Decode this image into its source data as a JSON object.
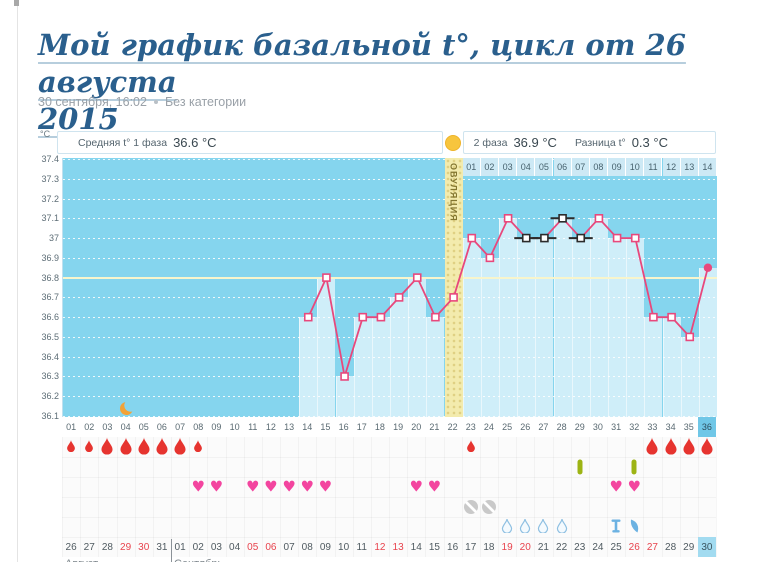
{
  "page": {
    "title_line1": "Мой график базальной t°, цикл от 26 августа",
    "title_line2": "2015",
    "meta_date": "30 сентября, 16:02",
    "meta_sep": "•",
    "meta_category": "Без категории"
  },
  "header": {
    "unit": "°C",
    "avg1_label": "Средняя t° 1 фаза",
    "avg1_value": "36.6 °C",
    "phase2_label": "2 фаза",
    "phase2_value": "36.9 °C",
    "diff_label": "Разница t°",
    "diff_value": "0.3 °C",
    "ovulation_label": "ОВУЛЯЦИЯ"
  },
  "chart_data": {
    "type": "line",
    "title": "Базальная температура по дням цикла",
    "ylabel": "°C",
    "ylim": [
      36.1,
      37.4
    ],
    "y_ticks": [
      "37.4",
      "37.3",
      "37.2",
      "37.1",
      "37",
      "36.9",
      "36.8",
      "36.7",
      "36.6",
      "36.5",
      "36.4",
      "36.3",
      "36.2",
      "36.1"
    ],
    "coverline": 36.8,
    "grid": true,
    "days": [
      "01",
      "02",
      "03",
      "04",
      "05",
      "06",
      "07",
      "08",
      "09",
      "10",
      "11",
      "12",
      "13",
      "14",
      "15",
      "16",
      "17",
      "18",
      "19",
      "20",
      "21",
      "22",
      "23",
      "24",
      "25",
      "26",
      "27",
      "28",
      "29",
      "30",
      "31",
      "32",
      "33",
      "34",
      "35",
      "36"
    ],
    "phase2_days": [
      "01",
      "02",
      "03",
      "04",
      "05",
      "06",
      "07",
      "08",
      "09",
      "10",
      "11",
      "12",
      "13",
      "14"
    ],
    "ovulation_day": 22,
    "moon_day": 4,
    "current_day": 36,
    "points": [
      {
        "day": 14,
        "t": 36.6
      },
      {
        "day": 15,
        "t": 36.8
      },
      {
        "day": 16,
        "t": 36.3
      },
      {
        "day": 17,
        "t": 36.6
      },
      {
        "day": 18,
        "t": 36.6
      },
      {
        "day": 19,
        "t": 36.7
      },
      {
        "day": 20,
        "t": 36.8
      },
      {
        "day": 21,
        "t": 36.6
      },
      {
        "day": 22,
        "t": 36.7
      },
      {
        "day": 23,
        "t": 37.0
      },
      {
        "day": 24,
        "t": 36.9
      },
      {
        "day": 25,
        "t": 37.1
      },
      {
        "day": 26,
        "t": 37.0,
        "marker": "black"
      },
      {
        "day": 27,
        "t": 37.0,
        "marker": "black"
      },
      {
        "day": 28,
        "t": 37.1,
        "marker": "black"
      },
      {
        "day": 29,
        "t": 37.0,
        "marker": "black"
      },
      {
        "day": 30,
        "t": 37.1
      },
      {
        "day": 31,
        "t": 37.0
      },
      {
        "day": 32,
        "t": 37.0
      },
      {
        "day": 33,
        "t": 36.6
      },
      {
        "day": 34,
        "t": 36.6
      },
      {
        "day": 35,
        "t": 36.5
      },
      {
        "day": 36,
        "t": 36.85,
        "marker": "filled"
      }
    ]
  },
  "icons": {
    "menstruation": [
      {
        "day": 1,
        "size": "small"
      },
      {
        "day": 2,
        "size": "small"
      },
      {
        "day": 3,
        "size": "large"
      },
      {
        "day": 4,
        "size": "large"
      },
      {
        "day": 5,
        "size": "large"
      },
      {
        "day": 6,
        "size": "large"
      },
      {
        "day": 7,
        "size": "large"
      },
      {
        "day": 8,
        "size": "small"
      },
      {
        "day": 23,
        "size": "small"
      },
      {
        "day": 33,
        "size": "large"
      },
      {
        "day": 34,
        "size": "large"
      },
      {
        "day": 35,
        "size": "large"
      },
      {
        "day": 36,
        "size": "large"
      }
    ],
    "medication_days": [
      29,
      32
    ],
    "intercourse_days": [
      8,
      9,
      11,
      12,
      13,
      14,
      15,
      20,
      21,
      31,
      32
    ],
    "protected_days": [
      23,
      24
    ],
    "discharge_outline_days": [
      25,
      26,
      27,
      28
    ],
    "ibeam_day": 31,
    "halfdrop_day": 32
  },
  "calendar": {
    "cells": [
      {
        "label": "26"
      },
      {
        "label": "27"
      },
      {
        "label": "28"
      },
      {
        "label": "29",
        "red": true
      },
      {
        "label": "30",
        "red": true
      },
      {
        "label": "31"
      },
      {
        "label": "01"
      },
      {
        "label": "02"
      },
      {
        "label": "03"
      },
      {
        "label": "04"
      },
      {
        "label": "05",
        "red": true
      },
      {
        "label": "06",
        "red": true
      },
      {
        "label": "07"
      },
      {
        "label": "08"
      },
      {
        "label": "09"
      },
      {
        "label": "10"
      },
      {
        "label": "11"
      },
      {
        "label": "12",
        "red": true
      },
      {
        "label": "13",
        "red": true
      },
      {
        "label": "14"
      },
      {
        "label": "15"
      },
      {
        "label": "16"
      },
      {
        "label": "17"
      },
      {
        "label": "18"
      },
      {
        "label": "19",
        "red": true
      },
      {
        "label": "20",
        "red": true
      },
      {
        "label": "21"
      },
      {
        "label": "22"
      },
      {
        "label": "23"
      },
      {
        "label": "24"
      },
      {
        "label": "25"
      },
      {
        "label": "26",
        "red": true
      },
      {
        "label": "27",
        "red": true
      },
      {
        "label": "28"
      },
      {
        "label": "29"
      },
      {
        "label": "30",
        "today": true
      }
    ],
    "months": [
      {
        "label": "Август",
        "start_day": 1
      },
      {
        "label": "Сентябрь",
        "start_day": 7
      }
    ]
  },
  "colors": {
    "title": "#2a5f8d",
    "plot_bg": "#85d5ee",
    "bar": "#cfeef9",
    "line": "#e8487c",
    "black_marker": "#2b2b2b",
    "coverline": "#f8f5cc",
    "ovulation_band": "#f3ebad",
    "ovulation_dot": "#f7c53d",
    "moon": "#f2a237",
    "blood_drop": "#e6342f",
    "heart": "#f3459f",
    "medication": "#9db414",
    "protected": "#c9c9c9",
    "discharge_outline": "#8fc0e2",
    "discharge_fill": "#6cb2e2",
    "weekend_date": "#e8434d",
    "today_bg": "#a2dbf0"
  }
}
